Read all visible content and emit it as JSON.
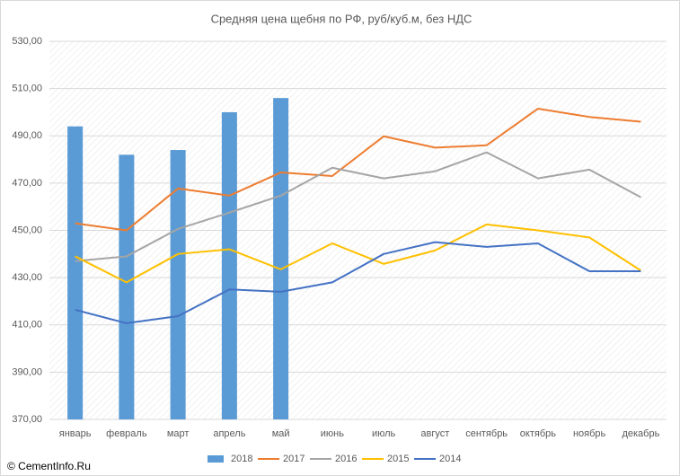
{
  "chart_data": {
    "type": "combo",
    "title": "Средняя цена щебня по РФ, руб/куб.м, без НДС",
    "categories": [
      "январь",
      "февраль",
      "март",
      "апрель",
      "май",
      "июнь",
      "июль",
      "август",
      "сентябрь",
      "октябрь",
      "ноябрь",
      "декабрь"
    ],
    "series": [
      {
        "name": "2018",
        "type": "bar",
        "color": "#5b9bd5",
        "values": [
          494,
          482,
          484,
          500,
          506,
          null,
          null,
          null,
          null,
          null,
          null,
          null
        ]
      },
      {
        "name": "2017",
        "type": "line",
        "color": "#ed7d31",
        "values": [
          453,
          450,
          467.7,
          464.7,
          474.5,
          473,
          489.8,
          485,
          486,
          501.5,
          498,
          496
        ]
      },
      {
        "name": "2016",
        "type": "line",
        "color": "#a5a5a5",
        "values": [
          437,
          439,
          450.6,
          457.5,
          464.7,
          476.5,
          472,
          475,
          483,
          472,
          475.7,
          464
        ]
      },
      {
        "name": "2015",
        "type": "line",
        "color": "#ffc000",
        "values": [
          439,
          428,
          440,
          442,
          433.5,
          444.5,
          435.8,
          441.5,
          452.5,
          450,
          447,
          433
        ]
      },
      {
        "name": "2014",
        "type": "line",
        "color": "#4472c4",
        "values": [
          416.4,
          410.7,
          413.7,
          425,
          424,
          428,
          440,
          445,
          443,
          444.5,
          432.7,
          432.7
        ]
      }
    ],
    "ylim": [
      370,
      530
    ],
    "yticks": [
      {
        "value": 370,
        "label": "370,00"
      },
      {
        "value": 390,
        "label": "390,00"
      },
      {
        "value": 410,
        "label": "410,00"
      },
      {
        "value": 430,
        "label": "430,00"
      },
      {
        "value": 450,
        "label": "450,00"
      },
      {
        "value": 470,
        "label": "470,00"
      },
      {
        "value": 490,
        "label": "490,00"
      },
      {
        "value": 510,
        "label": "510,00"
      },
      {
        "value": 530,
        "label": "530,00"
      }
    ],
    "grid": true,
    "legend": "bottom",
    "watermark": "© CementInfo.Ru"
  }
}
